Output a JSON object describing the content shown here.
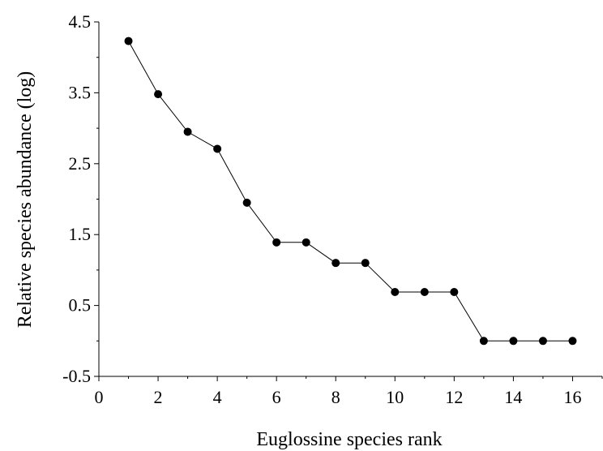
{
  "chart_data": {
    "type": "line",
    "title": "",
    "xlabel": "Euglossine species rank",
    "ylabel": "Relative species abundance (log)",
    "xlim": [
      0,
      17
    ],
    "ylim": [
      -0.5,
      4.5
    ],
    "xticks": [
      "0",
      "2",
      "4",
      "6",
      "8",
      "10",
      "12",
      "14",
      "16"
    ],
    "xtick_values": [
      0,
      2,
      4,
      6,
      8,
      10,
      12,
      14,
      16
    ],
    "yticks": [
      "-0.5",
      "0.5",
      "1.5",
      "2.5",
      "3.5",
      "4.5"
    ],
    "ytick_values": [
      -0.5,
      0.5,
      1.5,
      2.5,
      3.5,
      4.5
    ],
    "grid": false,
    "legend": "none",
    "series": [
      {
        "x": [
          1,
          2,
          3,
          4,
          5,
          6,
          7,
          8,
          9,
          10,
          11,
          12,
          13,
          14,
          15,
          16
        ],
        "values": [
          4.23,
          3.48,
          2.95,
          2.71,
          1.95,
          1.39,
          1.39,
          1.1,
          1.1,
          0.69,
          0.69,
          0.69,
          0.0,
          0.0,
          0.0,
          0.0
        ],
        "color": "#000000",
        "marker": "circle"
      }
    ]
  }
}
